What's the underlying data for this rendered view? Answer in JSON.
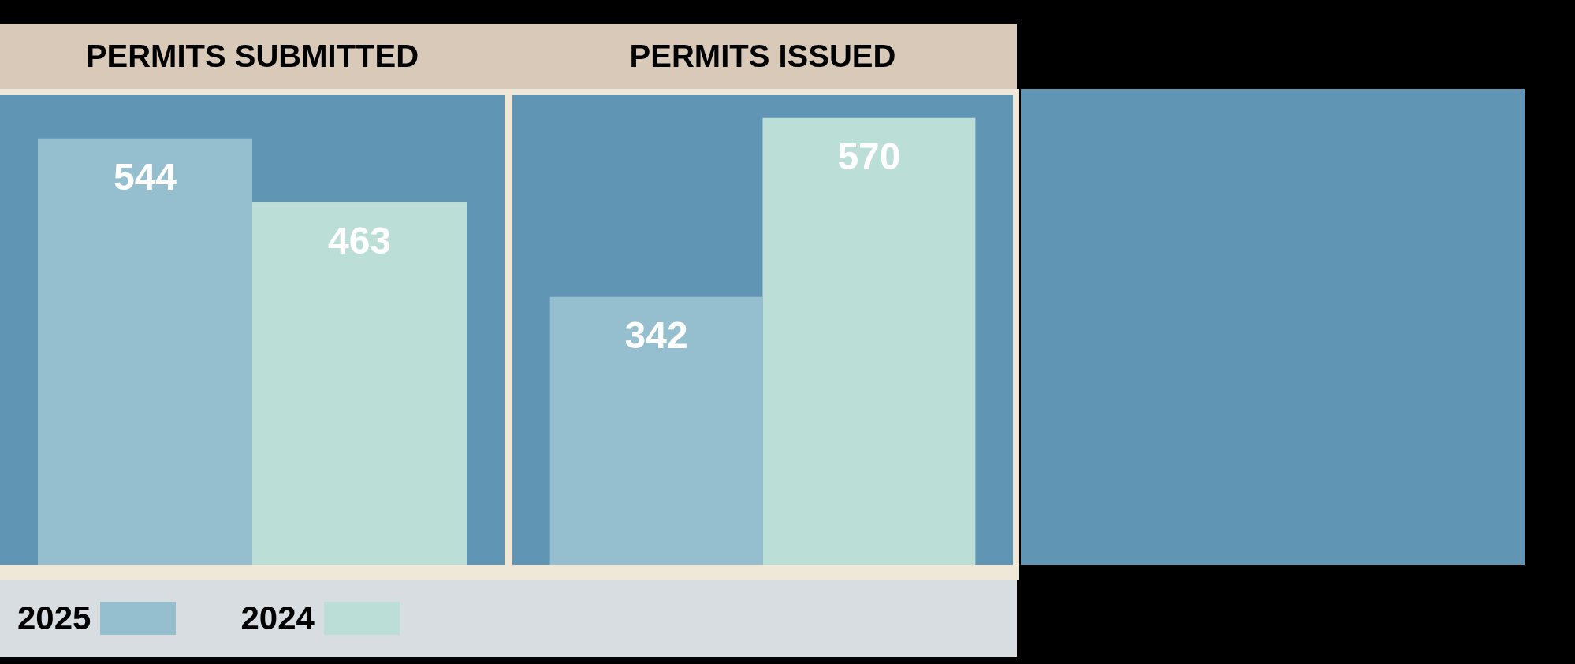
{
  "chart_data": [
    {
      "type": "bar",
      "title": "PERMITS SUBMITTED",
      "categories": [
        null
      ],
      "series": [
        {
          "name": "2025",
          "color": "#95bfcf",
          "values": [
            544
          ]
        },
        {
          "name": "2024",
          "color": "#bbded7",
          "values": [
            463
          ]
        }
      ],
      "data_labels": true,
      "legend": "bottom",
      "tick_labels": false
    },
    {
      "type": "bar",
      "title": "PERMITS ISSUED",
      "categories": [
        null
      ],
      "series": [
        {
          "name": "2025",
          "color": "#95bfcf",
          "values": [
            342
          ]
        },
        {
          "name": "2024",
          "color": "#bbded7",
          "values": [
            570
          ]
        }
      ],
      "data_labels": true,
      "tick_labels": false
    }
  ]
}
